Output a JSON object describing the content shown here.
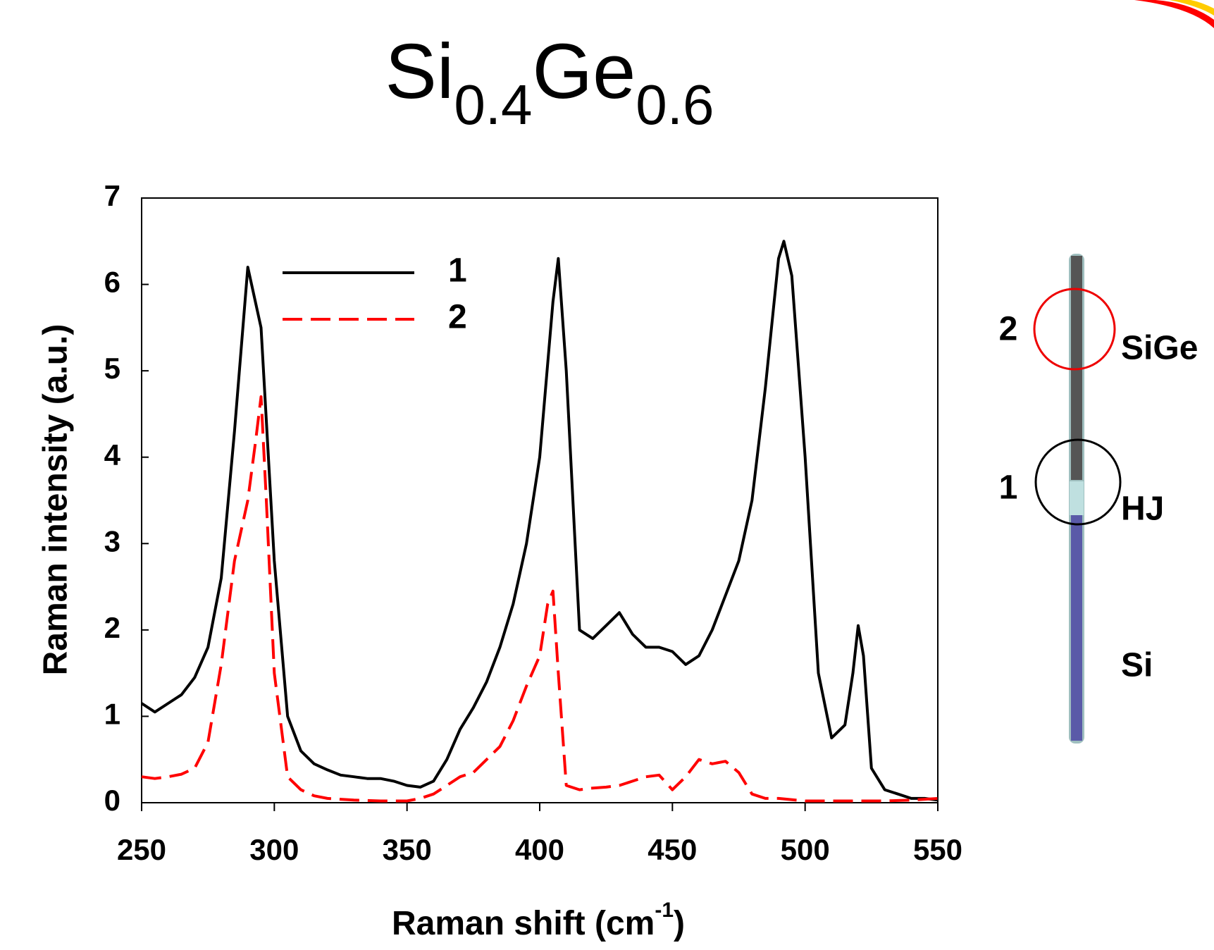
{
  "chart_data": {
    "type": "line",
    "title_parts": [
      "Si",
      "0.4",
      "Ge",
      "0.6"
    ],
    "x_label_parts": [
      "Raman shift (cm",
      "-1",
      ")"
    ],
    "y_label": "Raman intensity (a.u.)",
    "xlim": [
      250,
      550
    ],
    "xticks": [
      250,
      300,
      350,
      400,
      450,
      500,
      550
    ],
    "ylim": [
      0,
      7
    ],
    "yticks": [
      0,
      1,
      2,
      3,
      4,
      5,
      6,
      7
    ],
    "legend": "top-left",
    "series": [
      {
        "name": "1",
        "color": "#000000",
        "dash": false,
        "x": [
          250,
          255,
          260,
          265,
          270,
          275,
          280,
          285,
          290,
          295,
          300,
          305,
          310,
          315,
          320,
          325,
          330,
          335,
          340,
          345,
          350,
          355,
          360,
          365,
          370,
          375,
          380,
          385,
          390,
          395,
          400,
          405,
          407,
          410,
          415,
          420,
          425,
          430,
          435,
          440,
          445,
          450,
          455,
          460,
          465,
          470,
          475,
          480,
          485,
          490,
          492,
          495,
          500,
          505,
          510,
          515,
          518,
          520,
          522,
          525,
          530,
          535,
          540,
          545,
          550
        ],
        "values": [
          1.15,
          1.05,
          1.15,
          1.25,
          1.45,
          1.8,
          2.6,
          4.3,
          6.2,
          5.5,
          2.8,
          1.0,
          0.6,
          0.45,
          0.38,
          0.32,
          0.3,
          0.28,
          0.28,
          0.25,
          0.2,
          0.18,
          0.25,
          0.5,
          0.85,
          1.1,
          1.4,
          1.8,
          2.3,
          3.0,
          4.0,
          5.8,
          6.3,
          5.0,
          2.0,
          1.9,
          2.05,
          2.2,
          1.95,
          1.8,
          1.8,
          1.75,
          1.6,
          1.7,
          2.0,
          2.4,
          2.8,
          3.5,
          4.8,
          6.3,
          6.5,
          6.1,
          4.0,
          1.5,
          0.75,
          0.9,
          1.5,
          2.05,
          1.7,
          0.4,
          0.15,
          0.1,
          0.05,
          0.05,
          0.03
        ]
      },
      {
        "name": "2",
        "color": "#ff0000",
        "dash": true,
        "x": [
          250,
          255,
          260,
          265,
          270,
          275,
          280,
          285,
          290,
          293,
          295,
          297,
          300,
          305,
          310,
          315,
          320,
          330,
          340,
          350,
          355,
          360,
          365,
          370,
          375,
          380,
          385,
          390,
          395,
          400,
          403,
          405,
          407,
          410,
          415,
          420,
          425,
          430,
          435,
          440,
          445,
          450,
          455,
          460,
          465,
          470,
          475,
          480,
          485,
          490,
          500,
          510,
          520,
          530,
          540,
          550
        ],
        "values": [
          0.3,
          0.28,
          0.3,
          0.33,
          0.4,
          0.7,
          1.6,
          2.8,
          3.5,
          4.2,
          4.7,
          3.5,
          1.5,
          0.3,
          0.15,
          0.08,
          0.05,
          0.03,
          0.02,
          0.02,
          0.05,
          0.1,
          0.2,
          0.3,
          0.35,
          0.5,
          0.65,
          0.95,
          1.35,
          1.7,
          2.3,
          2.45,
          1.5,
          0.2,
          0.15,
          0.17,
          0.18,
          0.2,
          0.25,
          0.3,
          0.32,
          0.15,
          0.3,
          0.5,
          0.45,
          0.48,
          0.35,
          0.1,
          0.05,
          0.05,
          0.02,
          0.02,
          0.02,
          0.02,
          0.03,
          0.05
        ]
      }
    ]
  },
  "diagram": {
    "labels": {
      "point_2": "2",
      "sige": "SiGe",
      "point_1": "1",
      "hj": "HJ",
      "si": "Si"
    }
  }
}
